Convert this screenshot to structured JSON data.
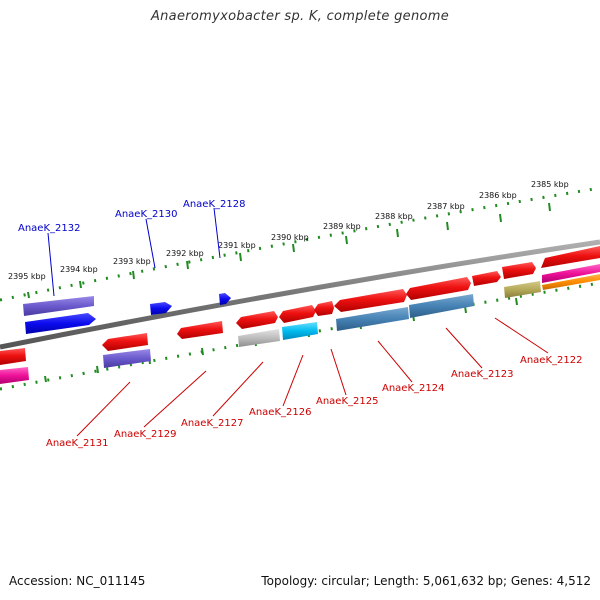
{
  "title": "Anaeromyxobacter sp. K, complete genome",
  "footer": {
    "accession": "Accession: NC_011145",
    "summary": "Topology: circular; Length: 5,061,632 bp; Genes: 4,512"
  },
  "ruler": {
    "ticks": [
      "2395 kbp",
      "2394 kbp",
      "2393 kbp",
      "2392 kbp",
      "2391 kbp",
      "2390 kbp",
      "2389 kbp",
      "2388 kbp",
      "2387 kbp",
      "2386 kbp",
      "2385 kbp"
    ]
  },
  "labels": {
    "top": [
      "AnaeK_2132",
      "AnaeK_2130",
      "AnaeK_2128"
    ],
    "bottom": [
      "AnaeK_2131",
      "AnaeK_2129",
      "AnaeK_2127",
      "AnaeK_2126",
      "AnaeK_2125",
      "AnaeK_2124",
      "AnaeK_2123",
      "AnaeK_2122"
    ]
  },
  "colors": {
    "top_label": "#0000cc",
    "bottom_label": "#cc0000",
    "axis_tick": "#228b22",
    "backbone": "#888888",
    "gene_red": "#ee1111",
    "gene_blue": "#0b0bee",
    "gene_purple": "#6a5acd",
    "gene_grey": "#bdbdbd",
    "gene_cyan": "#00bbee",
    "gene_steel": "#4682b4",
    "gene_olive": "#b5a95a",
    "gene_pink": "#ee1199",
    "gene_orange": "#ff8c00"
  }
}
